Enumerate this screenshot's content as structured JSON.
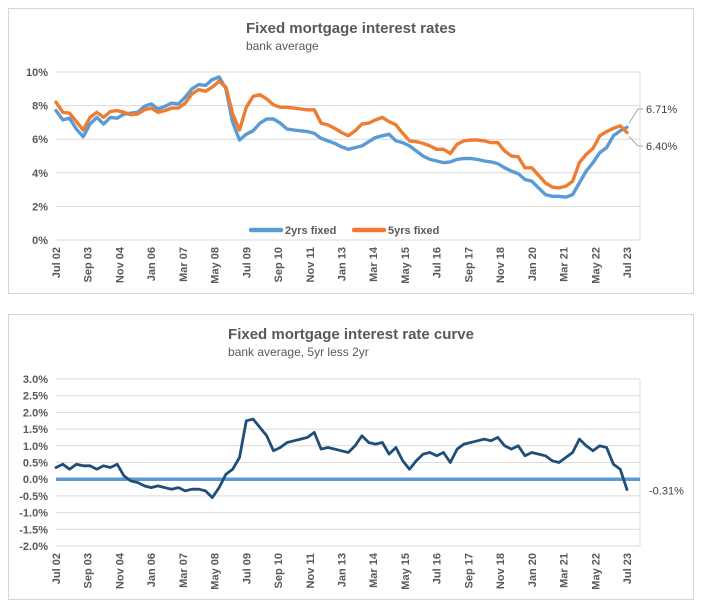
{
  "chart_data": [
    {
      "type": "line",
      "title": "Fixed mortgage interest rates",
      "subtitle": "bank average",
      "x_start": 2002.5,
      "x_step_years": 0.25,
      "x_ticks": [
        "Jul 02",
        "Sep 03",
        "Nov 04",
        "Jan 06",
        "Mar 07",
        "May 08",
        "Jul 09",
        "Sep 10",
        "Nov 11",
        "Jan 13",
        "Mar 14",
        "May 15",
        "Jul 16",
        "Sep 17",
        "Nov 18",
        "Jan 20",
        "Mar 21",
        "May 22",
        "Jul 23"
      ],
      "y_ticks": [
        "10%",
        "8%",
        "6%",
        "4%",
        "2%",
        "0%"
      ],
      "ylim": [
        0,
        10
      ],
      "grid": true,
      "grid_color": "#d9d9d9",
      "legend_position": "bottom-inside",
      "series": [
        {
          "name": "2yrs fixed",
          "color": "#5B9BD5",
          "end_label": "6.71%",
          "values": [
            7.7,
            7.15,
            7.25,
            6.6,
            6.15,
            6.9,
            7.3,
            6.9,
            7.3,
            7.25,
            7.5,
            7.55,
            7.6,
            7.95,
            8.1,
            7.8,
            7.95,
            8.15,
            8.1,
            8.5,
            9.0,
            9.25,
            9.2,
            9.55,
            9.7,
            9.0,
            7.0,
            5.95,
            6.3,
            6.5,
            6.95,
            7.2,
            7.2,
            6.95,
            6.6,
            6.55,
            6.5,
            6.45,
            6.35,
            6.05,
            5.9,
            5.75,
            5.55,
            5.4,
            5.5,
            5.6,
            5.85,
            6.1,
            6.2,
            6.3,
            5.9,
            5.8,
            5.6,
            5.3,
            5.0,
            4.8,
            4.7,
            4.6,
            4.65,
            4.8,
            4.85,
            4.85,
            4.8,
            4.7,
            4.65,
            4.55,
            4.3,
            4.1,
            3.95,
            3.6,
            3.5,
            3.1,
            2.7,
            2.6,
            2.6,
            2.55,
            2.7,
            3.4,
            4.1,
            4.6,
            5.2,
            5.5,
            6.2,
            6.5,
            6.71
          ]
        },
        {
          "name": "5yrs fixed",
          "color": "#ED7D31",
          "end_label": "6.40%",
          "values": [
            8.2,
            7.6,
            7.55,
            7.05,
            6.55,
            7.3,
            7.6,
            7.3,
            7.65,
            7.7,
            7.6,
            7.45,
            7.5,
            7.75,
            7.85,
            7.6,
            7.7,
            7.85,
            7.85,
            8.15,
            8.7,
            8.95,
            8.85,
            9.1,
            9.45,
            9.1,
            7.5,
            6.55,
            7.9,
            8.55,
            8.65,
            8.4,
            8.05,
            7.9,
            7.9,
            7.85,
            7.8,
            7.75,
            7.75,
            6.95,
            6.85,
            6.65,
            6.4,
            6.2,
            6.5,
            6.9,
            6.95,
            7.15,
            7.3,
            7.05,
            6.85,
            6.35,
            5.9,
            5.85,
            5.75,
            5.6,
            5.4,
            5.4,
            5.15,
            5.7,
            5.9,
            5.95,
            5.95,
            5.9,
            5.8,
            5.8,
            5.3,
            5.0,
            4.95,
            4.3,
            4.3,
            3.85,
            3.4,
            3.15,
            3.1,
            3.2,
            3.5,
            4.6,
            5.1,
            5.45,
            6.2,
            6.45,
            6.65,
            6.8,
            6.4
          ]
        }
      ]
    },
    {
      "type": "line",
      "title": "Fixed mortgage interest rate curve",
      "subtitle": "bank average, 5yr less 2yr",
      "x_start": 2002.5,
      "x_step_years": 0.25,
      "x_ticks": [
        "Jul 02",
        "Sep 03",
        "Nov 04",
        "Jan 06",
        "Mar 07",
        "May 08",
        "Jul 09",
        "Sep 10",
        "Nov 11",
        "Jan 13",
        "Mar 14",
        "May 15",
        "Jul 16",
        "Sep 17",
        "Nov 18",
        "Jan 20",
        "Mar 21",
        "May 22",
        "Jul 23"
      ],
      "y_ticks": [
        "3.0%",
        "2.5%",
        "2.0%",
        "1.5%",
        "1.0%",
        "0.5%",
        "0.0%",
        "-0.5%",
        "-1.0%",
        "-1.5%",
        "-2.0%"
      ],
      "ylim": [
        -2,
        3
      ],
      "grid": true,
      "grid_color": "#d9d9d9",
      "zero_line_color": "#5B9BD5",
      "series": [
        {
          "name": "5yr less 2yr",
          "color": "#1F4E79",
          "end_label": "-0.31%",
          "values": [
            0.35,
            0.45,
            0.3,
            0.45,
            0.4,
            0.4,
            0.3,
            0.4,
            0.35,
            0.45,
            0.1,
            -0.05,
            -0.1,
            -0.2,
            -0.25,
            -0.2,
            -0.25,
            -0.3,
            -0.25,
            -0.35,
            -0.3,
            -0.3,
            -0.35,
            -0.55,
            -0.25,
            0.15,
            0.3,
            0.65,
            1.75,
            1.8,
            1.55,
            1.3,
            0.85,
            0.95,
            1.1,
            1.15,
            1.2,
            1.25,
            1.4,
            0.9,
            0.95,
            0.9,
            0.85,
            0.8,
            1.0,
            1.3,
            1.1,
            1.05,
            1.1,
            0.75,
            0.95,
            0.55,
            0.3,
            0.55,
            0.75,
            0.8,
            0.7,
            0.8,
            0.5,
            0.9,
            1.05,
            1.1,
            1.15,
            1.2,
            1.15,
            1.25,
            1.0,
            0.9,
            1.0,
            0.7,
            0.8,
            0.75,
            0.7,
            0.55,
            0.5,
            0.65,
            0.8,
            1.2,
            1.0,
            0.85,
            1.0,
            0.95,
            0.45,
            0.3,
            -0.31
          ]
        }
      ]
    }
  ]
}
